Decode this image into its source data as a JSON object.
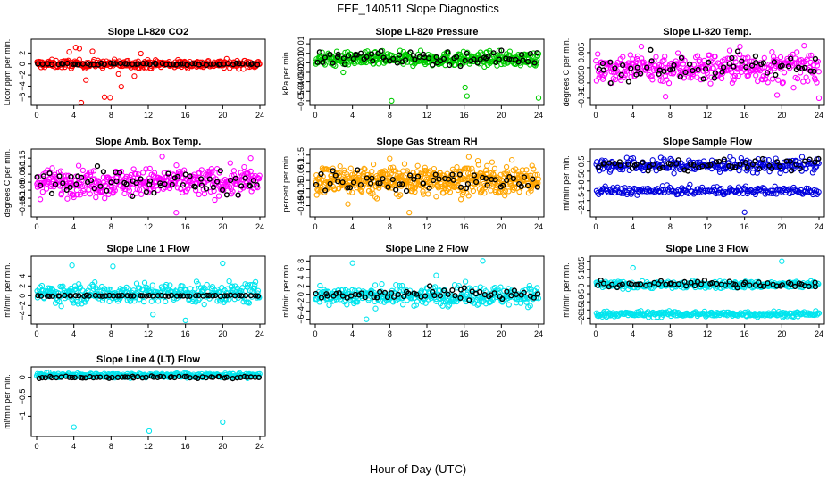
{
  "figure": {
    "title": "FEF_140511  Slope Diagnostics",
    "xlabel": "Hour of Day (UTC)"
  },
  "colors": {
    "red": "#ff0000",
    "green": "#00cc00",
    "magenta": "#ff00ff",
    "orange": "#ffa500",
    "blue": "#0000dd",
    "cyan": "#00e5ee",
    "black": "#000000"
  },
  "chart_data": [
    {
      "type": "scatter",
      "title": "Slope Li-820 CO2",
      "xlabel": "",
      "ylabel": "Licor ppm per min.",
      "xlim": [
        0,
        24
      ],
      "ylim": [
        -7,
        4
      ],
      "xticks": [
        0,
        4,
        8,
        12,
        16,
        20,
        24
      ],
      "yticks": [
        -6,
        -4,
        -2,
        0,
        2
      ],
      "series": [
        {
          "name": "all",
          "color": "red",
          "center": 0,
          "spread": 0.5,
          "n": 340,
          "outliers": [
            [
              4.2,
              3.0
            ],
            [
              4.6,
              2.8
            ],
            [
              4.8,
              -7.0
            ],
            [
              7.3,
              -6.0
            ],
            [
              7.9,
              -6.1
            ],
            [
              5.3,
              -2.9
            ],
            [
              10.5,
              -2.2
            ],
            [
              11.2,
              1.9
            ],
            [
              3.5,
              2.2
            ],
            [
              9.1,
              -4.1
            ],
            [
              6.0,
              2.3
            ],
            [
              8.8,
              -1.8
            ]
          ]
        },
        {
          "name": "hourly",
          "color": "black",
          "center": 0,
          "spread": 0.12,
          "n": 60
        }
      ]
    },
    {
      "type": "scatter",
      "title": "Slope Li-820 Pressure",
      "xlabel": "",
      "ylabel": "kPa per min.",
      "xlim": [
        0,
        24
      ],
      "ylim": [
        -0.052,
        0.012
      ],
      "xticks": [
        0,
        4,
        8,
        12,
        16,
        20,
        24
      ],
      "yticks": [
        -0.05,
        -0.04,
        -0.03,
        -0.02,
        -0.01,
        0.0,
        0.01
      ],
      "series": [
        {
          "name": "all",
          "color": "green",
          "center": -0.006,
          "spread": 0.005,
          "n": 380,
          "outliers": [
            [
              8.2,
              -0.05
            ],
            [
              16.1,
              -0.036
            ],
            [
              24.0,
              -0.047
            ],
            [
              16.3,
              -0.045
            ],
            [
              3.0,
              -0.02
            ]
          ]
        },
        {
          "name": "hourly",
          "color": "black",
          "center": -0.005,
          "spread": 0.005,
          "n": 70
        }
      ]
    },
    {
      "type": "scatter",
      "title": "Slope Li-820 Temp.",
      "xlabel": "",
      "ylabel": "degrees C per min.",
      "xlim": [
        0,
        24
      ],
      "ylim": [
        -0.0115,
        0.0085
      ],
      "xticks": [
        0,
        4,
        8,
        12,
        16,
        20,
        24
      ],
      "yticks": [
        -0.01,
        -0.005,
        0.0,
        0.005
      ],
      "series": [
        {
          "name": "all",
          "color": "magenta",
          "center": 0,
          "spread": 0.0035,
          "n": 340,
          "outliers": [
            [
              4.9,
              0.007
            ],
            [
              15.5,
              0.007
            ],
            [
              24.0,
              -0.01
            ],
            [
              7.5,
              -0.0095
            ],
            [
              19.5,
              -0.009
            ]
          ]
        },
        {
          "name": "hourly",
          "color": "black",
          "center": 0,
          "spread": 0.003,
          "n": 60
        }
      ]
    },
    {
      "type": "scatter",
      "title": "Slope Amb. Box Temp.",
      "xlabel": "",
      "ylabel": "degrees C per min.",
      "xlim": [
        0,
        24
      ],
      "ylim": [
        -0.2,
        0.19
      ],
      "xticks": [
        0,
        4,
        8,
        12,
        16,
        20,
        24
      ],
      "yticks": [
        -0.15,
        -0.1,
        -0.05,
        0.0,
        0.05,
        0.1,
        0.15
      ],
      "series": [
        {
          "name": "all",
          "color": "magenta",
          "center": 0,
          "spread": 0.06,
          "n": 380,
          "outliers": [
            [
              15.0,
              -0.19
            ],
            [
              23.0,
              0.15
            ],
            [
              13.5,
              0.16
            ]
          ]
        },
        {
          "name": "hourly",
          "color": "black",
          "center": 0,
          "spread": 0.05,
          "n": 65
        }
      ]
    },
    {
      "type": "scatter",
      "title": "Slope Gas Stream RH",
      "xlabel": "",
      "ylabel": "percent per min.",
      "xlim": [
        0,
        24
      ],
      "ylim": [
        -0.2,
        0.17
      ],
      "xticks": [
        0,
        4,
        8,
        12,
        16,
        20,
        24
      ],
      "yticks": [
        -0.15,
        -0.1,
        -0.05,
        0.0,
        0.05,
        0.1,
        0.15
      ],
      "series": [
        {
          "name": "all",
          "color": "orange",
          "center": 0,
          "spread": 0.06,
          "n": 520,
          "outliers": [
            [
              3.5,
              -0.14
            ],
            [
              10.1,
              -0.19
            ],
            [
              16.5,
              0.14
            ],
            [
              8.0,
              0.13
            ]
          ]
        },
        {
          "name": "hourly",
          "color": "black",
          "center": 0,
          "spread": 0.04,
          "n": 60
        }
      ]
    },
    {
      "type": "scatter",
      "title": "Slope Sample Flow",
      "xlabel": "",
      "ylabel": "ml/min per min.",
      "xlim": [
        0,
        24
      ],
      "ylim": [
        -2.2,
        1.0
      ],
      "xticks": [
        0,
        4,
        8,
        12,
        16,
        20,
        24
      ],
      "yticks": [
        -2.0,
        -1.5,
        -1.0,
        -0.5,
        0.0,
        0.5
      ],
      "series": [
        {
          "name": "band-high",
          "color": "blue",
          "center": 0.3,
          "spread": 0.25,
          "n": 260,
          "outliers": [
            [
              16.0,
              -2.1
            ]
          ]
        },
        {
          "name": "band-low",
          "color": "blue",
          "center": -1.0,
          "spread": 0.15,
          "n": 200
        },
        {
          "name": "hourly",
          "color": "black",
          "center": 0.35,
          "spread": 0.2,
          "n": 55
        }
      ]
    },
    {
      "type": "scatter",
      "title": "Slope Line 1 Flow",
      "xlabel": "",
      "ylabel": "ml/min per min.",
      "xlim": [
        0,
        24
      ],
      "ylim": [
        -5.2,
        7.5
      ],
      "xticks": [
        0,
        4,
        8,
        12,
        16,
        20,
        24
      ],
      "yticks": [
        -4,
        -2,
        0,
        2,
        4
      ],
      "series": [
        {
          "name": "all",
          "color": "cyan",
          "center": 0.5,
          "spread": 1.4,
          "n": 340,
          "outliers": [
            [
              3.8,
              6.2
            ],
            [
              16.0,
              -5.0
            ],
            [
              20.0,
              6.6
            ],
            [
              8.2,
              6.0
            ],
            [
              12.5,
              -3.8
            ]
          ]
        },
        {
          "name": "hourly",
          "color": "black",
          "center": 0,
          "spread": 0.08,
          "n": 60
        }
      ]
    },
    {
      "type": "scatter",
      "title": "Slope Line 2 Flow",
      "xlabel": "",
      "ylabel": "ml/min per min.",
      "xlim": [
        0,
        24
      ],
      "ylim": [
        -6.5,
        8.5
      ],
      "xticks": [
        0,
        4,
        8,
        12,
        16,
        20,
        24
      ],
      "yticks": [
        -6,
        -4,
        -2,
        0,
        2,
        4,
        6,
        8
      ],
      "series": [
        {
          "name": "all",
          "color": "cyan",
          "center": -0.3,
          "spread": 1.6,
          "n": 360,
          "outliers": [
            [
              4.0,
              7.5
            ],
            [
              18.0,
              8.0
            ],
            [
              13.0,
              4.5
            ],
            [
              5.5,
              -6.0
            ]
          ]
        },
        {
          "name": "hourly",
          "color": "black",
          "center": -0.2,
          "spread": 1.0,
          "n": 60
        }
      ]
    },
    {
      "type": "scatter",
      "title": "Slope Line 3 Flow",
      "xlabel": "",
      "ylabel": "ml/min per min.",
      "xlim": [
        0,
        24
      ],
      "ylim": [
        -22,
        16.5
      ],
      "xticks": [
        0,
        4,
        8,
        12,
        16,
        20,
        24
      ],
      "yticks": [
        -20,
        -15,
        -10,
        -5,
        0,
        5,
        10,
        15
      ],
      "series": [
        {
          "name": "band-high",
          "color": "cyan",
          "center": 0.5,
          "spread": 1.5,
          "n": 300,
          "outliers": [
            [
              4.0,
              11.0
            ],
            [
              20.0,
              15.0
            ]
          ]
        },
        {
          "name": "band-low",
          "color": "cyan",
          "center": -17.5,
          "spread": 1.2,
          "n": 260
        },
        {
          "name": "hourly",
          "color": "black",
          "center": 1.0,
          "spread": 1.3,
          "n": 60
        }
      ]
    },
    {
      "type": "scatter",
      "title": "Slope Line 4 (LT) Flow",
      "xlabel": "",
      "ylabel": "ml/min per min.",
      "xlim": [
        0,
        24
      ],
      "ylim": [
        -1.45,
        0.2
      ],
      "xticks": [
        0,
        4,
        8,
        12,
        16,
        20,
        24
      ],
      "yticks": [
        -1.0,
        -0.5,
        0.0
      ],
      "series": [
        {
          "name": "all",
          "color": "cyan",
          "center": 0.05,
          "spread": 0.04,
          "n": 340,
          "outliers": [
            [
              4.0,
              -1.28
            ],
            [
              12.1,
              -1.38
            ],
            [
              20.0,
              -1.15
            ]
          ]
        },
        {
          "name": "hourly",
          "color": "black",
          "center": 0.0,
          "spread": 0.02,
          "n": 60
        }
      ]
    }
  ]
}
